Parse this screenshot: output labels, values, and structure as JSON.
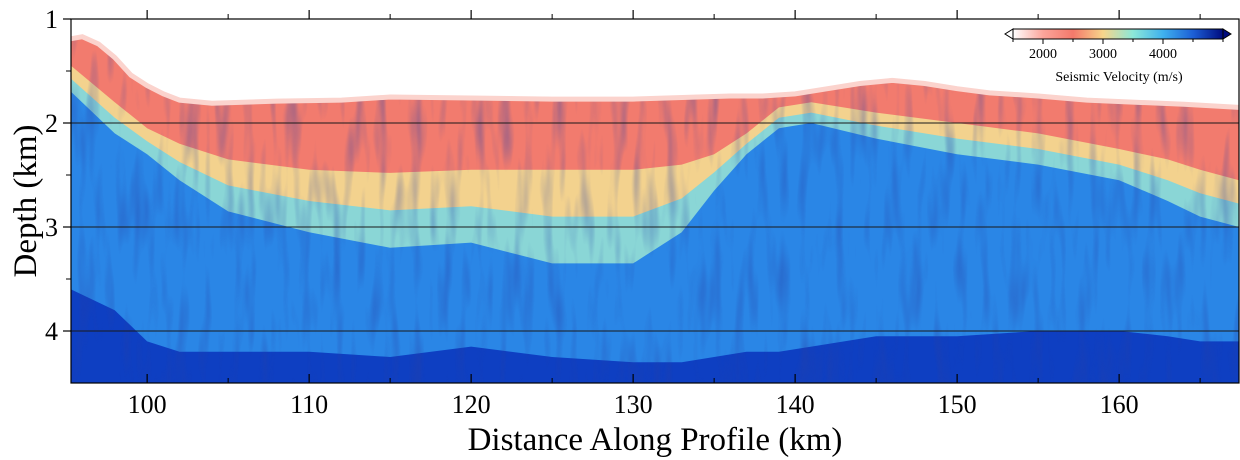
{
  "chart_data": {
    "type": "heatmap",
    "xlabel": "Distance Along Profile (km)",
    "ylabel": "Depth (km)",
    "xlim": [
      95.3,
      167.4
    ],
    "ylim": [
      1,
      4.5
    ],
    "y_inverted": true,
    "x_ticks": [
      100,
      110,
      120,
      130,
      140,
      150,
      160
    ],
    "x_tick_labels": [
      "100",
      "110",
      "120",
      "130",
      "140",
      "150",
      "160"
    ],
    "y_ticks": [
      1,
      2,
      3,
      4
    ],
    "y_tick_labels": [
      "1",
      "2",
      "3",
      "4"
    ],
    "horizontal_gridlines": [
      2,
      3,
      4
    ],
    "colorbar": {
      "label": "Seismic Velocity (m/s)",
      "placement": "top-right",
      "range": [
        1500,
        5000
      ],
      "ticks": [
        2000,
        3000,
        4000
      ],
      "tick_labels": [
        "2000",
        "3000",
        "4000"
      ],
      "colormap": [
        "#ffffff",
        "#fba59b",
        "#f4796b",
        "#f7d58b",
        "#8ce8d8",
        "#3fb1ee",
        "#1c5fd6",
        "#000b7e"
      ],
      "extend": "both"
    },
    "seafloor_depth_profile": {
      "x": [
        95.3,
        96,
        97,
        98,
        99,
        100,
        101,
        102,
        104,
        108,
        112,
        115,
        120,
        125,
        130,
        134,
        136,
        138,
        140,
        142,
        144,
        146,
        148,
        150,
        152,
        155,
        158,
        161,
        164,
        167.4
      ],
      "depth": [
        1.17,
        1.15,
        1.22,
        1.35,
        1.52,
        1.62,
        1.7,
        1.76,
        1.79,
        1.77,
        1.76,
        1.73,
        1.74,
        1.75,
        1.75,
        1.73,
        1.72,
        1.72,
        1.7,
        1.65,
        1.6,
        1.57,
        1.6,
        1.65,
        1.69,
        1.72,
        1.76,
        1.78,
        1.8,
        1.83
      ]
    },
    "isovelocity_depths": {
      "x": [
        95.3,
        98,
        100,
        102,
        105,
        110,
        115,
        120,
        125,
        130,
        133,
        135,
        137,
        139,
        141,
        145,
        150,
        155,
        160,
        163,
        165,
        167.4
      ],
      "v2500": [
        1.45,
        1.8,
        2.05,
        2.2,
        2.35,
        2.45,
        2.48,
        2.45,
        2.45,
        2.45,
        2.4,
        2.3,
        2.1,
        1.85,
        1.8,
        1.9,
        2.0,
        2.1,
        2.25,
        2.35,
        2.45,
        2.55
      ],
      "v3500": [
        1.7,
        2.1,
        2.3,
        2.55,
        2.85,
        3.05,
        3.2,
        3.15,
        3.35,
        3.35,
        3.05,
        2.65,
        2.3,
        2.05,
        2.0,
        2.15,
        2.3,
        2.4,
        2.55,
        2.75,
        2.9,
        3.0
      ],
      "v4500": [
        3.6,
        3.8,
        4.1,
        4.2,
        4.2,
        4.2,
        4.25,
        4.15,
        4.25,
        4.3,
        4.3,
        4.25,
        4.2,
        4.2,
        4.15,
        4.05,
        4.05,
        4.0,
        4.0,
        4.05,
        4.1,
        4.1
      ]
    }
  }
}
